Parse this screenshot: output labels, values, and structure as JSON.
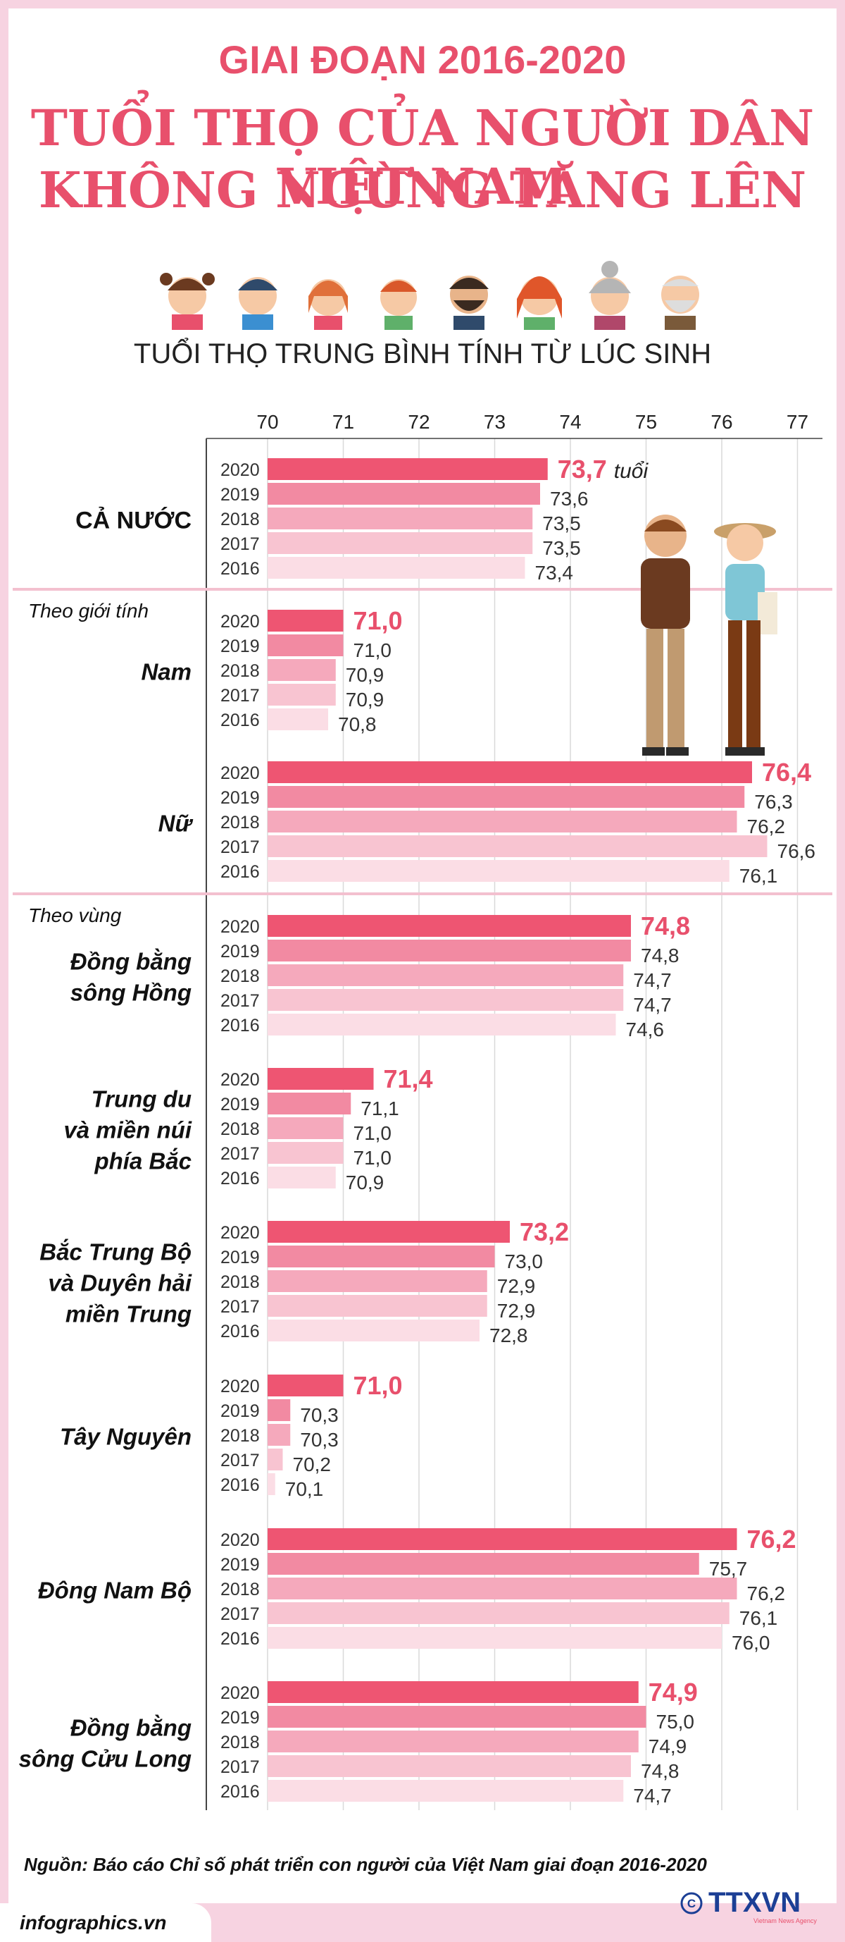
{
  "header": {
    "period": "GIAI ĐOẠN 2016-2020",
    "headline_line1": "TUỔI THỌ CỦA NGƯỜI DÂN VIỆT NAM",
    "headline_line2": "KHÔNG NGỪNG TĂNG LÊN"
  },
  "chart_data": {
    "type": "bar",
    "orientation": "horizontal",
    "title": "TUỔI THỌ TRUNG BÌNH TÍNH TỪ LÚC SINH",
    "unit_label": "tuổi",
    "xlim": [
      70,
      77
    ],
    "x_ticks": [
      "70",
      "71",
      "72",
      "73",
      "74",
      "75",
      "76",
      "77"
    ],
    "grid": true,
    "year_labels": [
      "2020",
      "2019",
      "2018",
      "2017",
      "2016"
    ],
    "section_labels": [
      "Theo giới tính",
      "Theo vùng"
    ],
    "groups": [
      {
        "label": [
          "CẢ NƯỚC"
        ],
        "values": [
          73.7,
          73.6,
          73.5,
          73.5,
          73.4
        ],
        "display": [
          "73,7",
          "73,6",
          "73,5",
          "73,5",
          "73,4"
        ]
      },
      {
        "label": [
          "Nam"
        ],
        "values": [
          71.0,
          71.0,
          70.9,
          70.9,
          70.8
        ],
        "display": [
          "71,0",
          "71,0",
          "70,9",
          "70,9",
          "70,8"
        ]
      },
      {
        "label": [
          "Nữ"
        ],
        "values": [
          76.4,
          76.3,
          76.2,
          76.6,
          76.1
        ],
        "display": [
          "76,4",
          "76,3",
          "76,2",
          "76,6",
          "76,1"
        ]
      },
      {
        "label": [
          "Đồng bằng",
          "sông Hồng"
        ],
        "values": [
          74.8,
          74.8,
          74.7,
          74.7,
          74.6
        ],
        "display": [
          "74,8",
          "74,8",
          "74,7",
          "74,7",
          "74,6"
        ]
      },
      {
        "label": [
          "Trung du",
          "và miền núi",
          "phía Bắc"
        ],
        "values": [
          71.4,
          71.1,
          71.0,
          71.0,
          70.9
        ],
        "display": [
          "71,4",
          "71,1",
          "71,0",
          "71,0",
          "70,9"
        ]
      },
      {
        "label": [
          "Bắc Trung Bộ",
          "và Duyên hải",
          "miền Trung"
        ],
        "values": [
          73.2,
          73.0,
          72.9,
          72.9,
          72.8
        ],
        "display": [
          "73,2",
          "73,0",
          "72,9",
          "72,9",
          "72,8"
        ]
      },
      {
        "label": [
          "Tây Nguyên"
        ],
        "values": [
          71.0,
          70.3,
          70.3,
          70.2,
          70.1
        ],
        "display": [
          "71,0",
          "70,3",
          "70,3",
          "70,2",
          "70,1"
        ]
      },
      {
        "label": [
          "Đông Nam Bộ"
        ],
        "values": [
          76.2,
          75.7,
          76.2,
          76.1,
          76.0
        ],
        "display": [
          "76,2",
          "75,7",
          "76,2",
          "76,1",
          "76,0"
        ]
      },
      {
        "label": [
          "Đồng bằng",
          "sông Cửu Long"
        ],
        "values": [
          74.9,
          75.0,
          74.9,
          74.8,
          74.7
        ],
        "display": [
          "74,9",
          "75,0",
          "74,9",
          "74,8",
          "74,7"
        ]
      }
    ]
  },
  "colors": {
    "accent": "#e8506c",
    "bar_2020": "#ee5572",
    "bar_2019": "#f28aa2",
    "bar_2018": "#f5a9bc",
    "bar_2017": "#f8c4d1",
    "bar_2016": "#fbdde5",
    "frame": "#f7d3e1"
  },
  "footer": {
    "source": "Nguồn: Báo cáo Chỉ số phát triển con người của Việt Nam giai đoạn 2016-2020",
    "site": "infographics.vn",
    "brand": "TTXVN",
    "brand_sub": "Vietnam News Agency"
  }
}
